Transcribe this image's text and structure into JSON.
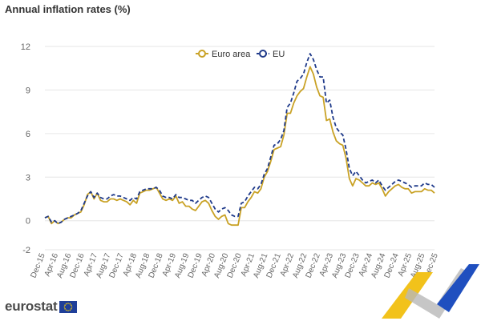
{
  "title": "Annual inflation rates (%)",
  "brand": "eurostat",
  "colors": {
    "euro_area": "#c9a226",
    "eu": "#1f3a8a",
    "grid": "#e6e6e6",
    "axis_text": "#666666",
    "logo_blue": "#1f4fbf",
    "logo_yellow": "#f2c21b",
    "logo_grey": "#b5b5b5"
  },
  "chart_data": {
    "type": "line",
    "ylim": [
      -2,
      12
    ],
    "yticks": [
      -2,
      0,
      3,
      6,
      9,
      12
    ],
    "ytick_labels": [
      "-2",
      "0",
      "3",
      "6",
      "9",
      "12"
    ],
    "legend_placement": "top-center",
    "grid": "horizontal",
    "x_start": "Dec-15",
    "x_end": "Dec-25",
    "x_tick_labels": [
      "Dec-15",
      "Apr-16",
      "Aug-16",
      "Dec-16",
      "Apr-17",
      "Aug-17",
      "Dec-17",
      "Apr-18",
      "Aug-18",
      "Dec-18",
      "Apr-19",
      "Aug-19",
      "Dec-19",
      "Apr-20",
      "Aug-20",
      "Dec-20",
      "Apr-21",
      "Aug-21",
      "Dec-21",
      "Apr-22",
      "Aug-22",
      "Dec-22",
      "Apr-23",
      "Aug-23",
      "Dec-23",
      "Apr-24",
      "Aug-24",
      "Dec-24",
      "Apr-25",
      "Aug-25",
      "Dec-25"
    ],
    "series": [
      {
        "name": "Euro area",
        "style": "solid",
        "values": [
          0.2,
          0.3,
          -0.2,
          0.0,
          -0.2,
          -0.1,
          0.1,
          0.2,
          0.2,
          0.4,
          0.5,
          0.6,
          1.1,
          1.8,
          2.0,
          1.5,
          1.9,
          1.4,
          1.3,
          1.3,
          1.5,
          1.5,
          1.4,
          1.5,
          1.4,
          1.3,
          1.1,
          1.4,
          1.2,
          1.9,
          2.0,
          2.1,
          2.1,
          2.2,
          2.3,
          1.9,
          1.5,
          1.4,
          1.5,
          1.4,
          1.7,
          1.2,
          1.3,
          1.0,
          1.0,
          0.8,
          0.7,
          1.0,
          1.3,
          1.4,
          1.2,
          0.7,
          0.3,
          0.1,
          0.3,
          0.4,
          -0.2,
          -0.3,
          -0.3,
          -0.3,
          0.9,
          0.9,
          1.3,
          1.6,
          2.0,
          1.9,
          2.2,
          3.0,
          3.4,
          4.1,
          4.9,
          5.0,
          5.1,
          5.9,
          7.4,
          7.4,
          8.1,
          8.6,
          8.9,
          9.1,
          9.9,
          10.6,
          10.1,
          9.2,
          8.6,
          8.5,
          6.9,
          7.0,
          6.1,
          5.5,
          5.3,
          5.2,
          4.3,
          2.9,
          2.4,
          2.9,
          2.8,
          2.6,
          2.4,
          2.4,
          2.6,
          2.5,
          2.6,
          2.2,
          1.7,
          2.0,
          2.2,
          2.4,
          2.5,
          2.3,
          2.2,
          2.2,
          1.9,
          2.0,
          2.0,
          2.0,
          2.2,
          2.1,
          2.1,
          1.9
        ]
      },
      {
        "name": "EU",
        "style": "dashed",
        "values": [
          0.2,
          0.3,
          -0.1,
          0.0,
          -0.2,
          -0.1,
          0.1,
          0.2,
          0.3,
          0.4,
          0.5,
          0.7,
          1.2,
          1.7,
          2.0,
          1.6,
          1.9,
          1.6,
          1.5,
          1.5,
          1.7,
          1.8,
          1.7,
          1.7,
          1.6,
          1.5,
          1.4,
          1.6,
          1.5,
          2.0,
          2.1,
          2.2,
          2.2,
          2.2,
          2.3,
          2.1,
          1.7,
          1.6,
          1.6,
          1.5,
          1.8,
          1.6,
          1.6,
          1.5,
          1.4,
          1.4,
          1.2,
          1.4,
          1.6,
          1.7,
          1.6,
          1.2,
          0.8,
          0.6,
          0.8,
          0.9,
          0.7,
          0.4,
          0.3,
          0.3,
          1.2,
          1.3,
          1.7,
          2.0,
          2.3,
          2.2,
          2.5,
          3.2,
          3.6,
          4.4,
          5.2,
          5.3,
          5.6,
          6.2,
          7.8,
          8.1,
          8.8,
          9.6,
          9.8,
          10.1,
          10.9,
          11.5,
          11.1,
          10.4,
          9.9,
          9.9,
          8.1,
          8.3,
          7.1,
          6.4,
          6.1,
          5.9,
          4.9,
          3.6,
          3.1,
          3.4,
          3.1,
          2.8,
          2.6,
          2.7,
          2.8,
          2.6,
          2.8,
          2.4,
          2.1,
          2.3,
          2.5,
          2.7,
          2.8,
          2.7,
          2.6,
          2.5,
          2.3,
          2.4,
          2.4,
          2.4,
          2.6,
          2.5,
          2.5,
          2.3
        ]
      }
    ]
  }
}
